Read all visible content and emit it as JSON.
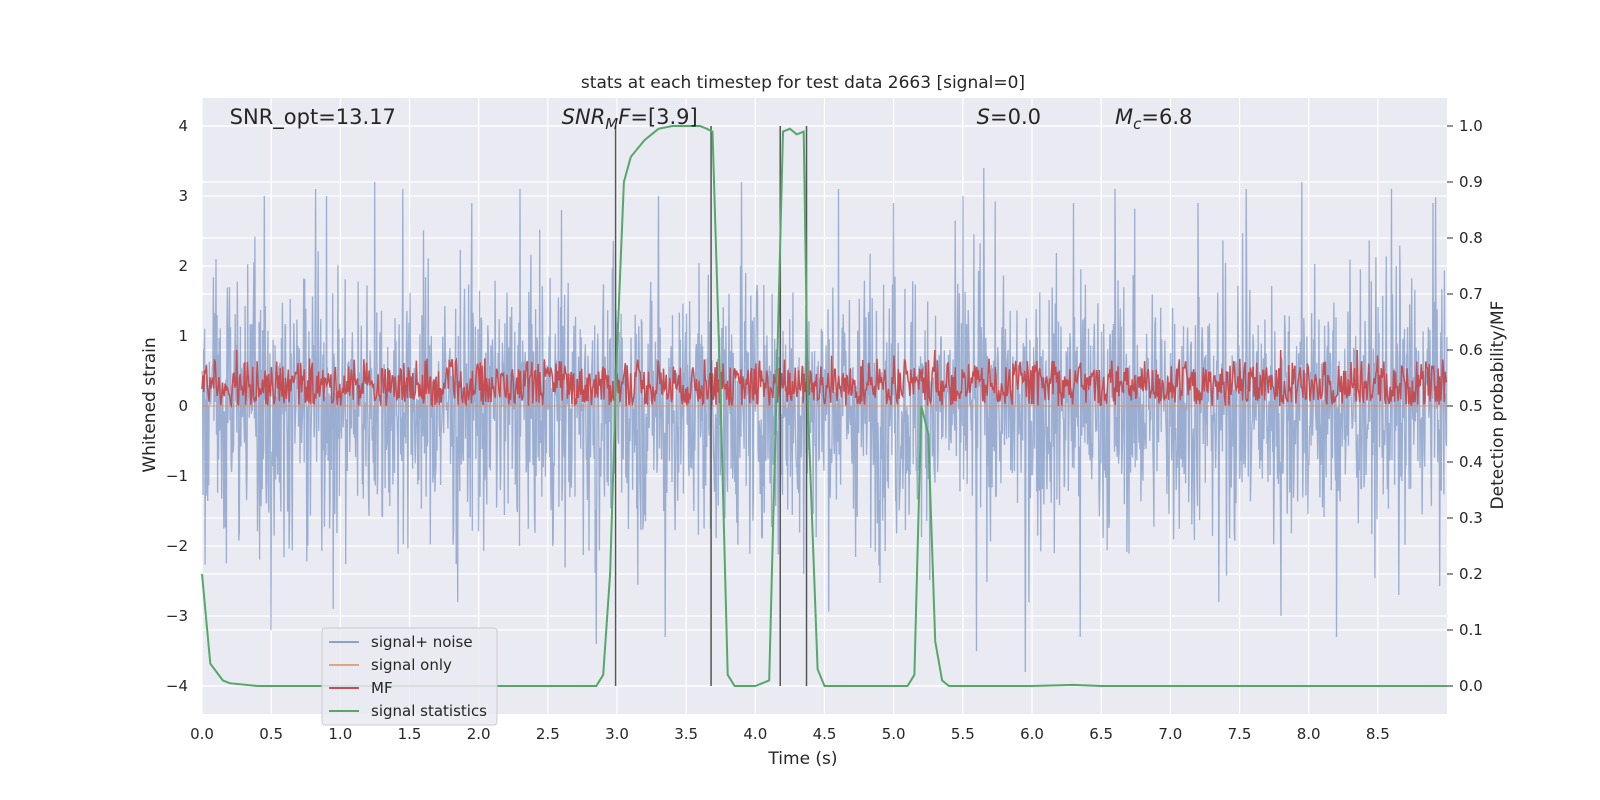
{
  "chart_data": {
    "type": "line",
    "title": "stats at each timestep for test data 2663 [signal=0]",
    "xlabel": "Time (s)",
    "ylabel_left": "Whitened strain",
    "ylabel_right": "Detection probability/MF",
    "xlim": [
      0,
      9.0
    ],
    "ylim_left": [
      -4.4,
      4.4
    ],
    "ylim_right": [
      -0.05,
      1.05
    ],
    "x_ticks": [
      "0.0",
      "0.5",
      "1.0",
      "1.5",
      "2.0",
      "2.5",
      "3.0",
      "3.5",
      "4.0",
      "4.5",
      "5.0",
      "5.5",
      "6.0",
      "6.5",
      "7.0",
      "7.5",
      "8.0",
      "8.5"
    ],
    "y_ticks_left": [
      "4",
      "3",
      "2",
      "1",
      "0",
      "−1",
      "−2",
      "−3",
      "−4"
    ],
    "y_ticks_right": [
      "1.0",
      "0.9",
      "0.8",
      "0.7",
      "0.6",
      "0.5",
      "0.4",
      "0.3",
      "0.2",
      "0.1",
      "0.0"
    ],
    "grid": true,
    "legend_position": "lower-left",
    "annotations": [
      {
        "main": "SNR_opt=13.17",
        "x": 0.2,
        "style": "normal"
      },
      {
        "main": "SNR",
        "sub": "M",
        "tail": "F=[3.9]",
        "x": 2.6,
        "style": "italic-prefix"
      },
      {
        "main": "S",
        "tail": "=0.0",
        "x": 5.6,
        "style": "italic-prefix"
      },
      {
        "main": "M",
        "sub": "c",
        "tail": "=6.8",
        "x": 6.6,
        "style": "italic-prefix"
      }
    ],
    "vertical_lines_x": [
      2.99,
      3.68,
      4.18,
      4.37
    ],
    "series": [
      {
        "name": "signal+ noise",
        "color": "#4c72b0",
        "axis": "left",
        "note_sigma": 1.3,
        "peaks": [
          [
            0.1,
            2.1
          ],
          [
            0.45,
            3.0
          ],
          [
            0.5,
            3.2
          ],
          [
            0.82,
            3.1
          ],
          [
            0.9,
            3.0
          ],
          [
            1.25,
            3.2
          ],
          [
            1.45,
            3.1
          ],
          [
            1.95,
            2.9
          ],
          [
            2.3,
            3.1
          ],
          [
            2.6,
            2.8
          ],
          [
            3.3,
            3.0
          ],
          [
            3.9,
            3.2
          ],
          [
            4.6,
            3.1
          ],
          [
            5.0,
            2.9
          ],
          [
            5.5,
            3.0
          ],
          [
            5.65,
            3.4
          ],
          [
            6.3,
            2.9
          ],
          [
            6.6,
            3.1
          ],
          [
            7.2,
            2.9
          ],
          [
            7.55,
            3.1
          ],
          [
            7.95,
            3.2
          ],
          [
            8.2,
            4.0
          ],
          [
            8.6,
            3.1
          ],
          [
            8.9,
            2.9
          ]
        ],
        "troughs": [
          [
            0.5,
            -3.2
          ],
          [
            0.95,
            -2.9
          ],
          [
            1.85,
            -2.8
          ],
          [
            2.85,
            -3.4
          ],
          [
            3.35,
            -3.3
          ],
          [
            4.35,
            -2.4
          ],
          [
            5.6,
            -3.5
          ],
          [
            5.95,
            -3.8
          ],
          [
            6.35,
            -3.3
          ],
          [
            7.35,
            -2.8
          ],
          [
            7.8,
            -3.0
          ],
          [
            8.2,
            -3.3
          ],
          [
            8.65,
            -2.7
          ]
        ]
      },
      {
        "name": "signal only",
        "color": "#dd8452",
        "axis": "left",
        "x": [
          0.0,
          9.0
        ],
        "y": [
          0.0,
          0.0
        ]
      },
      {
        "name": "MF",
        "color": "#c44e52",
        "axis": "right",
        "range": [
          0.5,
          0.57
        ],
        "peaks": [
          [
            0.25,
            0.6
          ],
          [
            0.4,
            0.58
          ],
          [
            2.35,
            0.58
          ],
          [
            4.55,
            0.59
          ],
          [
            5.0,
            0.59
          ],
          [
            5.3,
            0.6
          ],
          [
            7.8,
            0.6
          ],
          [
            8.35,
            0.6
          ],
          [
            8.5,
            0.59
          ]
        ]
      },
      {
        "name": "signal statistics",
        "color": "#55a868",
        "axis": "right",
        "x": [
          0.0,
          0.06,
          0.15,
          0.2,
          0.4,
          1.0,
          2.0,
          2.85,
          2.9,
          2.95,
          3.0,
          3.05,
          3.1,
          3.2,
          3.3,
          3.4,
          3.5,
          3.6,
          3.65,
          3.69,
          3.75,
          3.8,
          3.85,
          3.9,
          4.0,
          4.1,
          4.15,
          4.2,
          4.25,
          4.3,
          4.35,
          4.38,
          4.45,
          4.5,
          4.55,
          5.0,
          5.1,
          5.15,
          5.2,
          5.25,
          5.3,
          5.35,
          5.4,
          5.5,
          6.0,
          6.3,
          6.5,
          9.0
        ],
        "y": [
          0.2,
          0.04,
          0.01,
          0.005,
          0.0,
          0.0,
          0.0,
          0.0,
          0.02,
          0.2,
          0.6,
          0.9,
          0.945,
          0.975,
          0.995,
          1.0,
          1.0,
          1.0,
          0.995,
          0.99,
          0.5,
          0.02,
          0.0,
          0.0,
          0.0,
          0.01,
          0.5,
          0.99,
          0.995,
          0.985,
          0.99,
          0.5,
          0.03,
          0.0,
          0.0,
          0.0,
          0.0,
          0.02,
          0.5,
          0.45,
          0.08,
          0.01,
          0.0,
          0.0,
          0.0,
          0.002,
          0.0,
          0.0
        ]
      }
    ]
  }
}
